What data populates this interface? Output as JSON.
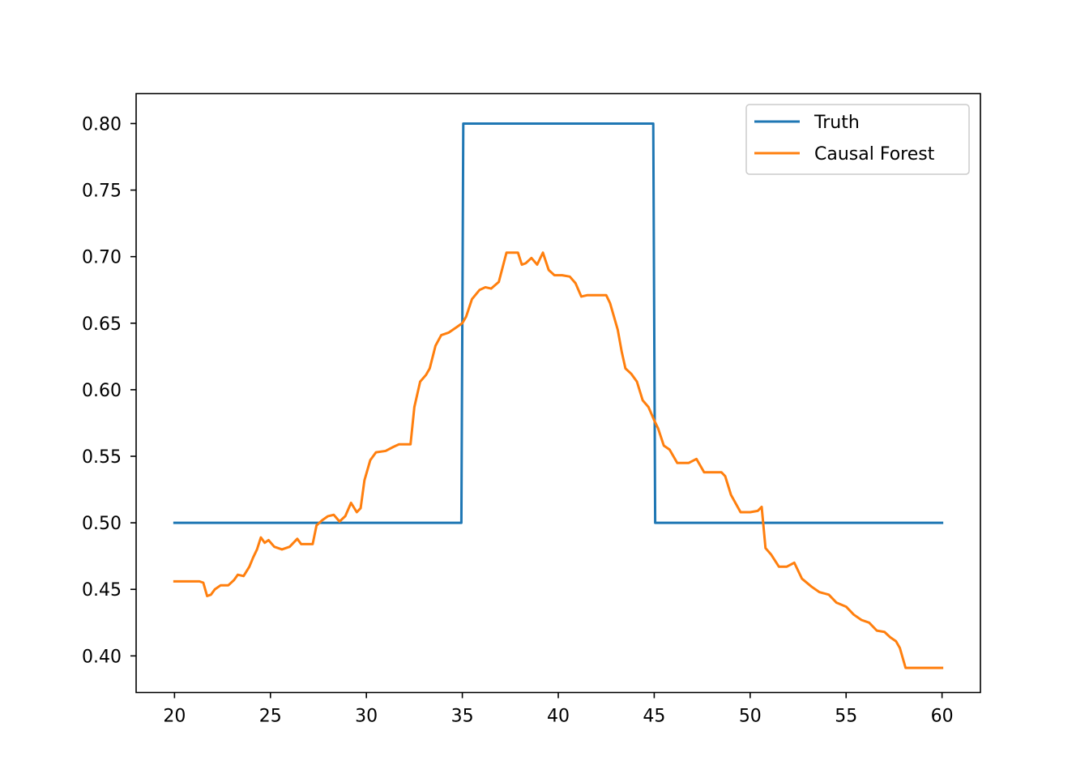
{
  "chart_data": {
    "type": "line",
    "title": "",
    "xlabel": "",
    "ylabel": "",
    "xlim": [
      18,
      62
    ],
    "ylim": [
      0.3725,
      0.8225
    ],
    "xticks": [
      20,
      25,
      30,
      35,
      40,
      45,
      50,
      55,
      60
    ],
    "xtick_labels": [
      "20",
      "25",
      "30",
      "35",
      "40",
      "45",
      "50",
      "55",
      "60"
    ],
    "yticks": [
      0.4,
      0.45,
      0.5,
      0.55,
      0.6,
      0.65,
      0.7,
      0.75,
      0.8
    ],
    "ytick_labels": [
      "0.40",
      "0.45",
      "0.50",
      "0.55",
      "0.60",
      "0.65",
      "0.70",
      "0.75",
      "0.80"
    ],
    "grid": false,
    "legend": {
      "placement": "top-right"
    },
    "series": [
      {
        "name": "Truth",
        "color": "#1f77b4",
        "x": [
          20,
          34.95,
          35.05,
          44.95,
          45.05,
          60
        ],
        "y": [
          0.5,
          0.5,
          0.8,
          0.8,
          0.5,
          0.5
        ]
      },
      {
        "name": "Causal Forest",
        "color": "#ff7f0e",
        "x": [
          20.0,
          21.3,
          21.5,
          21.7,
          21.9,
          22.1,
          22.4,
          22.8,
          23.1,
          23.3,
          23.6,
          23.9,
          24.1,
          24.3,
          24.5,
          24.7,
          24.9,
          25.2,
          25.6,
          26.0,
          26.4,
          26.6,
          26.9,
          27.2,
          27.4,
          27.7,
          28.0,
          28.3,
          28.6,
          28.9,
          29.2,
          29.5,
          29.7,
          29.9,
          30.2,
          30.5,
          31.0,
          31.4,
          31.7,
          32.3,
          32.5,
          32.8,
          33.1,
          33.3,
          33.6,
          33.9,
          34.3,
          34.7,
          35.0,
          35.2,
          35.5,
          35.9,
          36.2,
          36.5,
          36.9,
          37.3,
          37.6,
          37.9,
          38.1,
          38.3,
          38.6,
          38.9,
          39.2,
          39.5,
          39.8,
          40.2,
          40.6,
          40.9,
          41.2,
          41.5,
          41.8,
          42.1,
          42.5,
          42.7,
          42.9,
          43.1,
          43.3,
          43.5,
          43.8,
          44.1,
          44.4,
          44.7,
          45.0,
          45.2,
          45.5,
          45.8,
          46.2,
          46.8,
          47.2,
          47.6,
          48.5,
          48.7,
          49.0,
          49.5,
          50.0,
          50.4,
          50.6,
          50.8,
          51.1,
          51.5,
          51.9,
          52.3,
          52.7,
          53.2,
          53.6,
          54.1,
          54.5,
          55.0,
          55.4,
          55.8,
          56.2,
          56.6,
          57.0,
          57.3,
          57.6,
          57.8,
          58.1,
          60.0
        ],
        "y": [
          0.456,
          0.456,
          0.455,
          0.445,
          0.446,
          0.45,
          0.453,
          0.453,
          0.457,
          0.461,
          0.46,
          0.467,
          0.474,
          0.48,
          0.489,
          0.485,
          0.487,
          0.482,
          0.48,
          0.482,
          0.488,
          0.484,
          0.484,
          0.484,
          0.498,
          0.502,
          0.505,
          0.506,
          0.501,
          0.505,
          0.515,
          0.508,
          0.511,
          0.532,
          0.547,
          0.553,
          0.554,
          0.557,
          0.559,
          0.559,
          0.587,
          0.606,
          0.611,
          0.616,
          0.633,
          0.641,
          0.643,
          0.647,
          0.65,
          0.655,
          0.668,
          0.675,
          0.677,
          0.676,
          0.681,
          0.703,
          0.703,
          0.703,
          0.694,
          0.695,
          0.699,
          0.694,
          0.703,
          0.69,
          0.686,
          0.686,
          0.685,
          0.68,
          0.67,
          0.671,
          0.671,
          0.671,
          0.671,
          0.665,
          0.655,
          0.645,
          0.629,
          0.616,
          0.612,
          0.606,
          0.592,
          0.587,
          0.577,
          0.571,
          0.558,
          0.555,
          0.545,
          0.545,
          0.548,
          0.538,
          0.538,
          0.535,
          0.521,
          0.508,
          0.508,
          0.509,
          0.512,
          0.481,
          0.476,
          0.467,
          0.467,
          0.47,
          0.458,
          0.452,
          0.448,
          0.446,
          0.44,
          0.437,
          0.431,
          0.427,
          0.425,
          0.419,
          0.418,
          0.414,
          0.411,
          0.406,
          0.391,
          0.391
        ]
      }
    ]
  }
}
